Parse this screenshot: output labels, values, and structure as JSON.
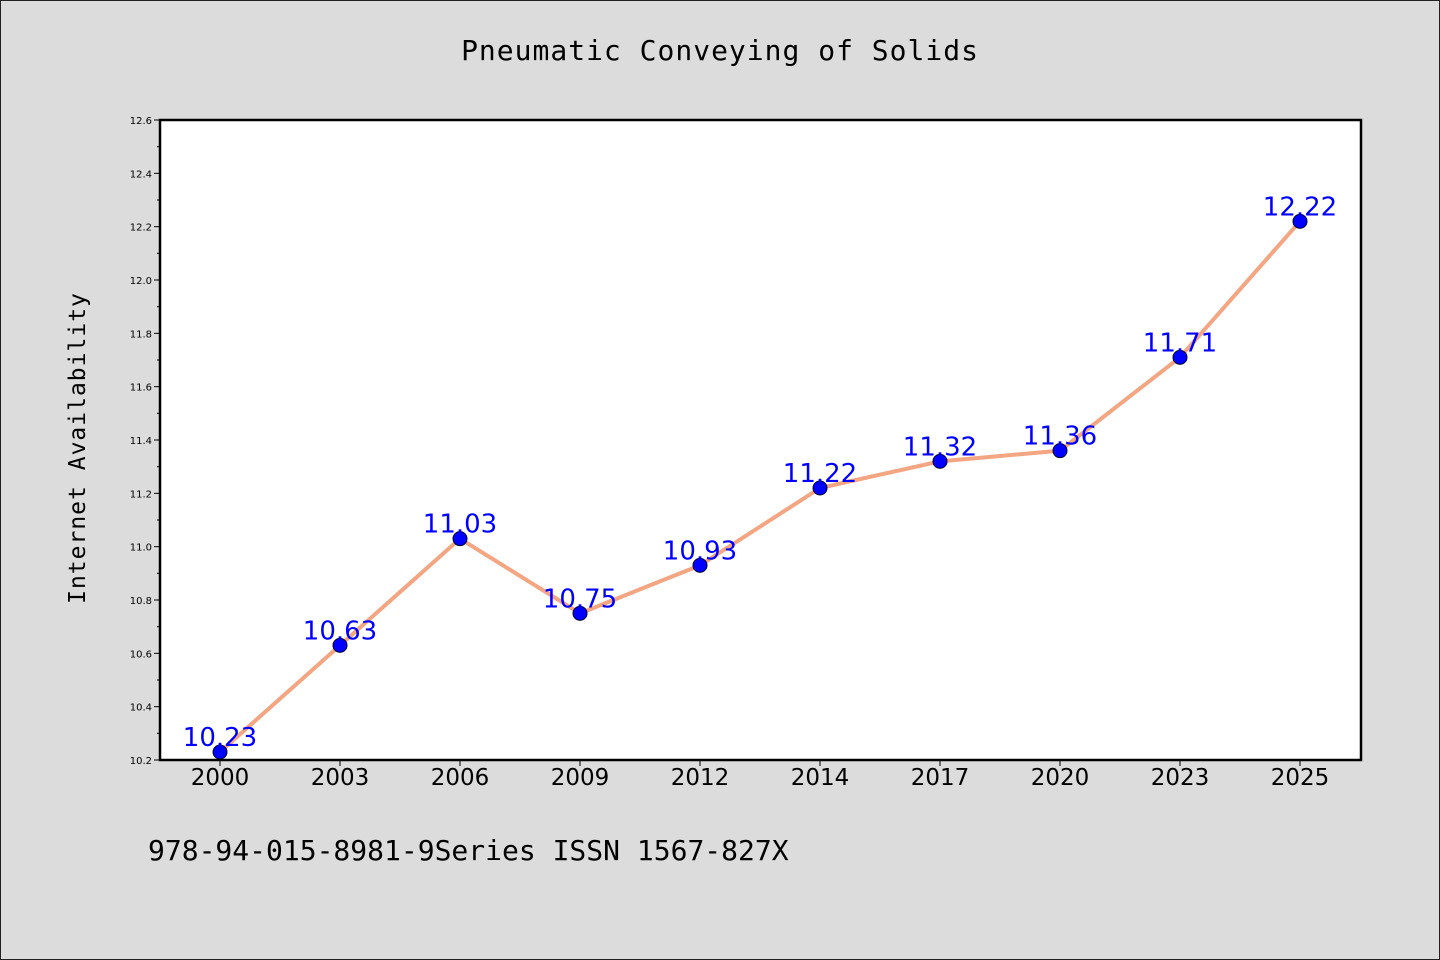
{
  "chart_data": {
    "type": "line",
    "title": "Pneumatic Conveying of Solids",
    "xlabel": "",
    "ylabel": "Internet Availability",
    "categories": [
      "2000",
      "2003",
      "2006",
      "2009",
      "2012",
      "2014",
      "2017",
      "2020",
      "2023",
      "2025"
    ],
    "series": [
      {
        "values": [
          10.23,
          10.63,
          11.03,
          10.75,
          10.93,
          11.22,
          11.32,
          11.36,
          11.71,
          12.22
        ],
        "data_labels": [
          "10.23",
          "10.63",
          "11.03",
          "10.75",
          "10.93",
          "11.22",
          "11.32",
          "11.36",
          "11.71",
          "12.22"
        ],
        "line_color": "#f4a582",
        "marker_color": "#0000ff"
      }
    ],
    "ylim": [
      10.2,
      12.6
    ],
    "yticks": [
      "10.2",
      "10.4",
      "10.6",
      "10.8",
      "11.0",
      "11.2",
      "11.4",
      "11.6",
      "11.8",
      "12.0",
      "12.2",
      "12.4",
      "12.6"
    ],
    "grid": false,
    "legend": "none"
  },
  "footnote": "978-94-015-8981-9Series ISSN 1567-827X",
  "colors": {
    "background": "#dcdcdc",
    "plot_background": "#ffffff",
    "label_color": "#0000ff"
  }
}
